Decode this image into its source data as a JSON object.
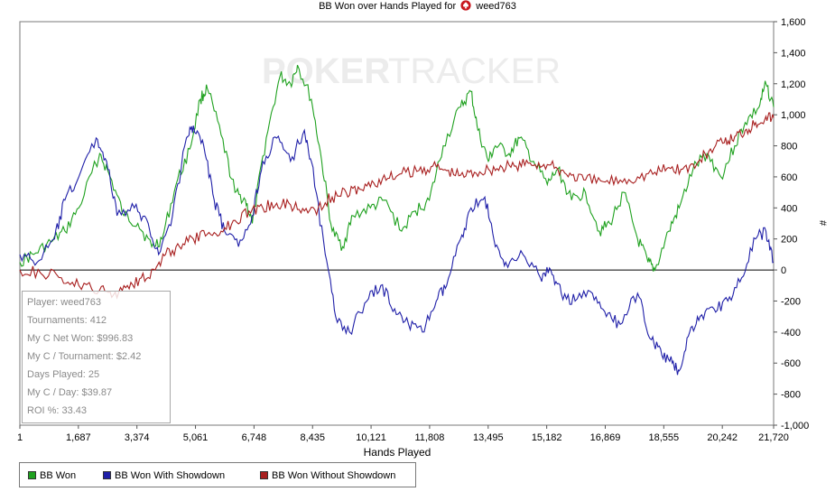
{
  "chart": {
    "title_prefix": "BB Won over Hands Played for",
    "player_name": "weed763",
    "xlabel": "Hands Played",
    "ylabel_right": "#"
  },
  "watermark": {
    "brand_left": "POKER",
    "brand_right": "TRACKER"
  },
  "stats_box": {
    "rows": [
      "Player: weed763",
      "Tournaments: 412",
      "My C Net Won: $996.83",
      "My C / Tournament: $2.42",
      "Days Played: 25",
      "My C / Day: $39.87",
      "ROI %: 33.43"
    ]
  },
  "legend": {
    "items": [
      {
        "label": "BB Won",
        "color": "#1fa11f"
      },
      {
        "label": "BB Won With Showdown",
        "color": "#1f1fa8"
      },
      {
        "label": "BB Won Without Showdown",
        "color": "#a81f1f"
      }
    ]
  },
  "chart_data": {
    "type": "line",
    "title": "BB Won over Hands Played for weed763",
    "xlabel": "Hands Played",
    "ylabel": "#",
    "xlim": [
      1,
      21720
    ],
    "ylim": [
      -1000,
      1600
    ],
    "x_ticks": [
      1,
      1687,
      3374,
      5061,
      6748,
      8435,
      10121,
      11808,
      13495,
      15182,
      16869,
      18555,
      20242,
      21720
    ],
    "x_tick_labels": [
      "1",
      "1,687",
      "3,374",
      "5,061",
      "6,748",
      "8,435",
      "10,121",
      "11,808",
      "13,495",
      "15,182",
      "16,869",
      "18,555",
      "20,242",
      "21,720"
    ],
    "y_ticks": [
      -1000,
      -800,
      -600,
      -400,
      -200,
      0,
      200,
      400,
      600,
      800,
      1000,
      1200,
      1400,
      1600
    ],
    "y_tick_labels": [
      "-1,000",
      "-800",
      "-600",
      "-400",
      "-200",
      "0",
      "200",
      "400",
      "600",
      "800",
      "1,000",
      "1,200",
      "1,400",
      "1,600"
    ],
    "grid": false,
    "legend_position": "bottom-left",
    "series": [
      {
        "name": "BB Won",
        "color": "#1fa11f",
        "x": [
          1,
          400,
          900,
          1300,
          1700,
          2300,
          2600,
          3000,
          3400,
          3800,
          4100,
          4500,
          4900,
          5200,
          5400,
          5800,
          6200,
          6500,
          6700,
          7100,
          7500,
          7800,
          8000,
          8400,
          8700,
          9000,
          9300,
          9600,
          10100,
          10500,
          11000,
          11400,
          11800,
          12200,
          12700,
          13000,
          13200,
          13500,
          13700,
          14100,
          14400,
          14800,
          15200,
          15500,
          15900,
          16300,
          16700,
          17000,
          17400,
          17800,
          18100,
          18300,
          18700,
          19000,
          19400,
          19800,
          20200,
          20600,
          20900,
          21300,
          21500,
          21720
        ],
        "y": [
          50,
          100,
          180,
          250,
          400,
          750,
          600,
          350,
          300,
          150,
          200,
          550,
          780,
          1100,
          1170,
          870,
          500,
          450,
          300,
          850,
          1250,
          1200,
          1320,
          1100,
          700,
          250,
          150,
          350,
          400,
          450,
          250,
          380,
          450,
          800,
          1050,
          1150,
          900,
          700,
          800,
          750,
          850,
          700,
          550,
          650,
          450,
          500,
          250,
          300,
          500,
          200,
          50,
          0,
          250,
          400,
          650,
          750,
          600,
          800,
          950,
          1050,
          1200,
          1050
        ]
      },
      {
        "name": "BB Won With Showdown",
        "color": "#1f1fa8",
        "x": [
          1,
          500,
          1000,
          1300,
          1700,
          2200,
          2500,
          2800,
          3300,
          3700,
          4000,
          4400,
          4800,
          5000,
          5300,
          5600,
          5900,
          6300,
          6700,
          7000,
          7400,
          7800,
          8200,
          8400,
          8800,
          9100,
          9500,
          10000,
          10400,
          10800,
          11200,
          11600,
          12000,
          12300,
          12700,
          13000,
          13400,
          13700,
          14000,
          14500,
          15000,
          15300,
          15600,
          16000,
          16500,
          16900,
          17300,
          17800,
          18200,
          18500,
          18800,
          19000,
          19300,
          19600,
          20000,
          20400,
          20800,
          21200,
          21500,
          21720
        ],
        "y": [
          100,
          50,
          200,
          450,
          600,
          850,
          700,
          350,
          400,
          300,
          100,
          350,
          850,
          930,
          800,
          450,
          250,
          150,
          350,
          700,
          850,
          700,
          900,
          700,
          100,
          -300,
          -400,
          -200,
          -100,
          -250,
          -350,
          -400,
          -200,
          -100,
          200,
          400,
          470,
          150,
          50,
          100,
          -50,
          0,
          -150,
          -200,
          -150,
          -300,
          -350,
          -150,
          -450,
          -550,
          -600,
          -650,
          -400,
          -300,
          -250,
          -200,
          -50,
          200,
          250,
          50
        ]
      },
      {
        "name": "BB Won Without Showdown",
        "color": "#a81f1f",
        "x": [
          1,
          600,
          1200,
          1700,
          2300,
          2700,
          3100,
          3500,
          3900,
          4200,
          4600,
          5000,
          5400,
          5800,
          6200,
          6600,
          7000,
          7400,
          7800,
          8200,
          8600,
          9000,
          9400,
          9800,
          10200,
          10600,
          11000,
          11500,
          11900,
          12300,
          12700,
          13100,
          13500,
          13900,
          14300,
          14700,
          15100,
          15500,
          15900,
          16300,
          16800,
          17300,
          17800,
          18300,
          18700,
          19100,
          19500,
          19900,
          20300,
          20600,
          20900,
          21200,
          21500,
          21720
        ],
        "y": [
          0,
          -20,
          -50,
          -100,
          -130,
          -160,
          -100,
          -50,
          0,
          100,
          150,
          200,
          230,
          250,
          320,
          380,
          400,
          430,
          420,
          380,
          400,
          470,
          500,
          520,
          560,
          590,
          620,
          640,
          670,
          640,
          610,
          630,
          650,
          660,
          670,
          690,
          680,
          650,
          610,
          580,
          570,
          580,
          600,
          630,
          660,
          650,
          680,
          780,
          820,
          860,
          900,
          950,
          990,
          980
        ]
      }
    ]
  }
}
